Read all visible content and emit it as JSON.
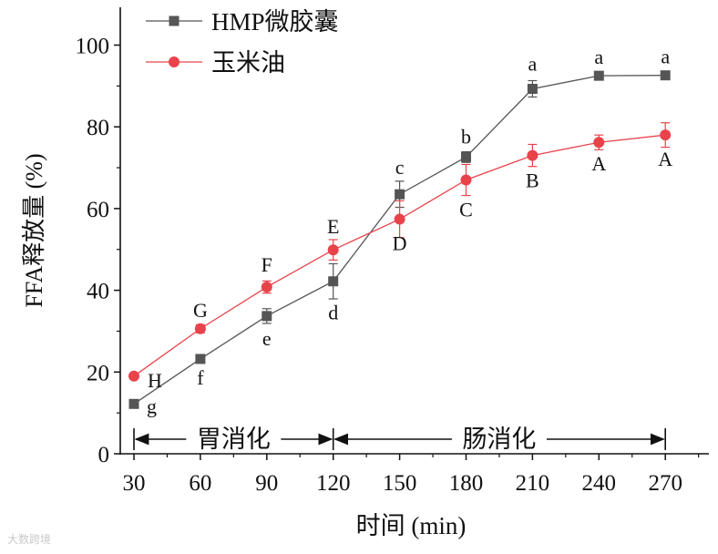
{
  "chart_data": {
    "type": "line",
    "title": "",
    "xlabel": "时间 (min)",
    "ylabel": "FFA释放量 (%)",
    "x": [
      30,
      60,
      90,
      120,
      150,
      180,
      210,
      240,
      270
    ],
    "xlim": [
      22,
      298
    ],
    "ylim": [
      0,
      110
    ],
    "yticks": [
      0,
      20,
      40,
      60,
      80,
      100
    ],
    "legend_position": "top-left",
    "series": [
      {
        "name": "HMP微胶囊",
        "marker": "square",
        "color": "#555555",
        "values": [
          12.2,
          23.2,
          33.7,
          42.2,
          63.5,
          72.6,
          89.3,
          92.5,
          92.6
        ],
        "errors": [
          0.8,
          0.8,
          1.8,
          4.3,
          3.2,
          1.3,
          2.0,
          0.6,
          0.6
        ],
        "letters": [
          "g",
          "f",
          "e",
          "d",
          "c",
          "b",
          "a",
          "a",
          "a"
        ]
      },
      {
        "name": "玉米油",
        "marker": "circle",
        "color": "#e8434b",
        "values": [
          19.0,
          30.6,
          40.8,
          49.9,
          57.4,
          67.0,
          73.0,
          76.2,
          78.0
        ],
        "errors": [
          0.6,
          1.0,
          1.5,
          2.5,
          4.5,
          3.8,
          2.7,
          1.8,
          3.0
        ],
        "letters": [
          "H",
          "G",
          "F",
          "E",
          "D",
          "C",
          "B",
          "A",
          "A"
        ]
      }
    ],
    "phases": [
      {
        "label": "胃消化",
        "from": 30,
        "to": 120
      },
      {
        "label": "肠消化",
        "from": 120,
        "to": 270
      }
    ]
  },
  "watermark": "大数跨境"
}
